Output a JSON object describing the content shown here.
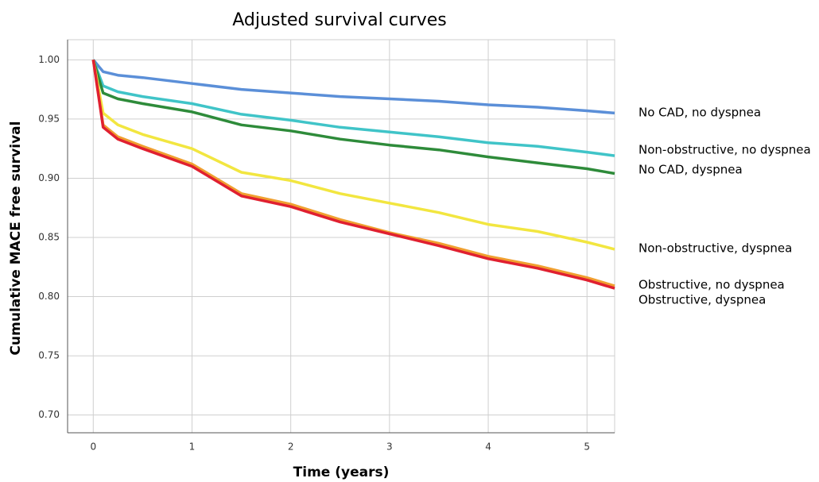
{
  "chart_data": {
    "type": "line",
    "title": "Adjusted survival curves",
    "x_label": "Time (years)",
    "y_label": "Cumulative MACE free survival",
    "x": [
      0,
      0.1,
      0.25,
      0.5,
      1,
      1.5,
      2,
      2.5,
      3,
      3.5,
      4,
      4.5,
      5,
      5.28
    ],
    "series": [
      {
        "name": "No CAD, no dyspnea",
        "color": "#5b8fd8",
        "values": [
          1.0,
          0.99,
          0.987,
          0.985,
          0.98,
          0.975,
          0.972,
          0.969,
          0.967,
          0.965,
          0.962,
          0.96,
          0.957,
          0.955
        ]
      },
      {
        "name": "Non-obstructive, no dyspnea",
        "color": "#40c4c8",
        "values": [
          1.0,
          0.978,
          0.973,
          0.969,
          0.963,
          0.954,
          0.949,
          0.943,
          0.939,
          0.935,
          0.93,
          0.927,
          0.922,
          0.919
        ]
      },
      {
        "name": "No CAD, dyspnea",
        "color": "#2e8b3a",
        "values": [
          1.0,
          0.972,
          0.967,
          0.963,
          0.956,
          0.945,
          0.94,
          0.933,
          0.928,
          0.924,
          0.918,
          0.913,
          0.908,
          0.904
        ]
      },
      {
        "name": "Non-obstructive, dyspnea",
        "color": "#f2e640",
        "values": [
          1.0,
          0.955,
          0.945,
          0.937,
          0.925,
          0.905,
          0.898,
          0.887,
          0.879,
          0.871,
          0.861,
          0.855,
          0.846,
          0.84
        ]
      },
      {
        "name": "Obstructive, no dyspnea",
        "color": "#f0a030",
        "values": [
          1.0,
          0.945,
          0.935,
          0.927,
          0.912,
          0.887,
          0.878,
          0.865,
          0.854,
          0.845,
          0.834,
          0.826,
          0.816,
          0.809
        ]
      },
      {
        "name": "Obstructive, dyspnea",
        "color": "#e02030",
        "values": [
          1.0,
          0.943,
          0.933,
          0.925,
          0.91,
          0.885,
          0.876,
          0.863,
          0.853,
          0.843,
          0.832,
          0.824,
          0.814,
          0.807
        ]
      }
    ],
    "xlim": [
      -0.26,
      5.28
    ],
    "ylim": [
      0.685,
      1.017
    ],
    "xticks": [
      0,
      1,
      2,
      3,
      4,
      5
    ],
    "yticks": [
      {
        "value": 0.7,
        "label": "0.70"
      },
      {
        "value": 0.75,
        "label": "0.75"
      },
      {
        "value": 0.8,
        "label": "0.80"
      },
      {
        "value": 0.85,
        "label": "0.85"
      },
      {
        "value": 0.9,
        "label": "0.90"
      },
      {
        "value": 0.95,
        "label": "0.95"
      },
      {
        "value": 1.0,
        "label": "1.00"
      }
    ],
    "grid": true
  }
}
